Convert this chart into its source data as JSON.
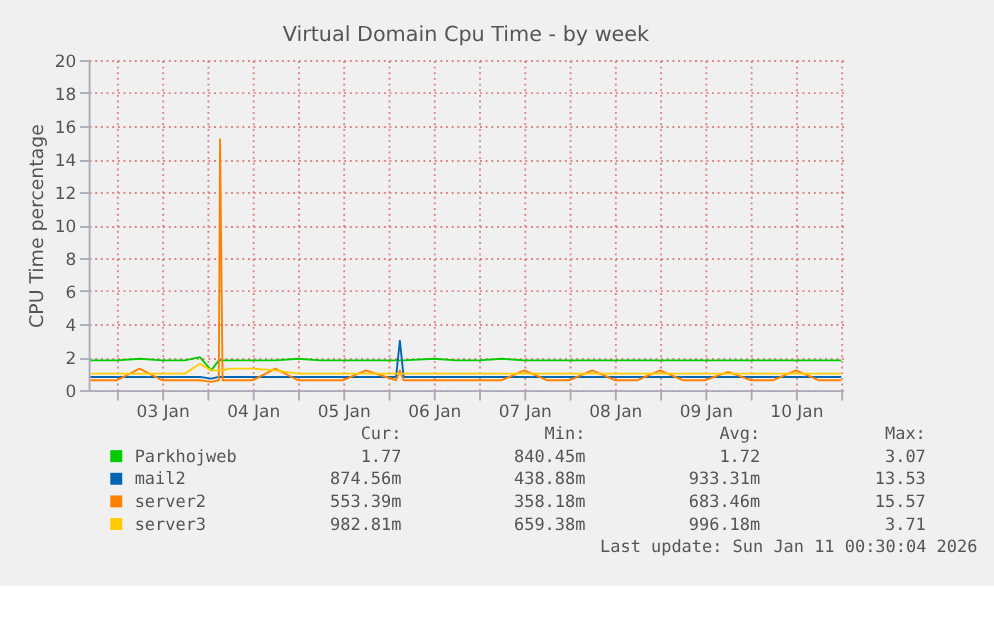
{
  "chart_data": {
    "type": "line",
    "title": "Virtual Domain Cpu Time - by week",
    "ylabel": "CPU Time percentage",
    "x": [
      "2026-01-02T17:00",
      "2026-01-03T00:00",
      "2026-01-03T06:00",
      "2026-01-03T12:00",
      "2026-01-03T18:00",
      "2026-01-03T22:00",
      "2026-01-04T01:00",
      "2026-01-04T03:00",
      "2026-01-04T03:20",
      "2026-01-04T04:00",
      "2026-01-04T06:00",
      "2026-01-04T12:00",
      "2026-01-04T18:00",
      "2026-01-05T00:00",
      "2026-01-05T06:00",
      "2026-01-05T12:00",
      "2026-01-05T18:00",
      "2026-01-06T02:00",
      "2026-01-06T03:00",
      "2026-01-06T04:00",
      "2026-01-06T12:00",
      "2026-01-06T18:00",
      "2026-01-07T00:00",
      "2026-01-07T06:00",
      "2026-01-07T12:00",
      "2026-01-07T18:00",
      "2026-01-08T00:00",
      "2026-01-08T06:00",
      "2026-01-08T12:00",
      "2026-01-08T18:00",
      "2026-01-09T00:00",
      "2026-01-09T06:00",
      "2026-01-09T12:00",
      "2026-01-09T18:00",
      "2026-01-10T00:00",
      "2026-01-10T06:00",
      "2026-01-10T12:00",
      "2026-01-10T18:00",
      "2026-01-11T00:00"
    ],
    "series": [
      {
        "name": "Parkhojweb",
        "color": "#00cc00",
        "values": [
          1.8,
          1.8,
          1.9,
          1.8,
          1.8,
          2.0,
          1.2,
          1.8,
          1.8,
          1.8,
          1.8,
          1.8,
          1.8,
          1.9,
          1.8,
          1.8,
          1.8,
          1.8,
          1.8,
          1.8,
          1.9,
          1.8,
          1.8,
          1.9,
          1.8,
          1.8,
          1.8,
          1.8,
          1.8,
          1.8,
          1.8,
          1.8,
          1.8,
          1.8,
          1.8,
          1.8,
          1.8,
          1.8,
          1.8
        ]
      },
      {
        "name": "mail2",
        "color": "#0066b3",
        "values": [
          0.8,
          0.8,
          0.8,
          0.8,
          0.8,
          0.8,
          0.7,
          0.8,
          0.8,
          0.8,
          0.8,
          0.8,
          0.8,
          0.8,
          0.8,
          0.8,
          0.8,
          0.8,
          3.0,
          0.8,
          0.8,
          0.8,
          0.8,
          0.8,
          0.8,
          0.8,
          0.8,
          0.8,
          0.8,
          0.8,
          0.8,
          0.8,
          0.8,
          0.8,
          0.8,
          0.8,
          0.8,
          0.8,
          0.8
        ]
      },
      {
        "name": "server2",
        "color": "#ff8000",
        "values": [
          0.6,
          0.6,
          1.3,
          0.6,
          0.6,
          0.6,
          0.5,
          0.6,
          15.2,
          0.6,
          0.6,
          0.6,
          1.3,
          0.6,
          0.6,
          0.6,
          1.2,
          0.6,
          1.2,
          0.6,
          0.6,
          0.6,
          0.6,
          0.6,
          1.2,
          0.6,
          0.6,
          1.2,
          0.6,
          0.6,
          1.2,
          0.6,
          0.6,
          1.1,
          0.6,
          0.6,
          1.2,
          0.6,
          0.6
        ]
      },
      {
        "name": "server3",
        "color": "#ffcc00",
        "values": [
          1.0,
          1.0,
          1.0,
          1.0,
          1.0,
          1.6,
          1.2,
          1.2,
          1.2,
          1.2,
          1.3,
          1.3,
          1.2,
          1.0,
          1.0,
          1.0,
          1.0,
          1.0,
          1.0,
          1.0,
          1.0,
          1.0,
          1.0,
          1.0,
          1.0,
          1.0,
          1.0,
          1.0,
          1.0,
          1.0,
          1.0,
          1.0,
          1.0,
          1.0,
          1.0,
          1.0,
          1.0,
          1.0,
          1.0
        ]
      }
    ],
    "xlim": [
      "2026-01-02T16:30",
      "2026-01-11T00:30"
    ],
    "xticks": [
      {
        "value": "2026-01-03T00:00",
        "label": null
      },
      {
        "value": "2026-01-03T12:00",
        "label": "03 Jan"
      },
      {
        "value": "2026-01-04T00:00",
        "label": null
      },
      {
        "value": "2026-01-04T12:00",
        "label": "04 Jan"
      },
      {
        "value": "2026-01-05T00:00",
        "label": null
      },
      {
        "value": "2026-01-05T12:00",
        "label": "05 Jan"
      },
      {
        "value": "2026-01-06T00:00",
        "label": null
      },
      {
        "value": "2026-01-06T12:00",
        "label": "06 Jan"
      },
      {
        "value": "2026-01-07T00:00",
        "label": null
      },
      {
        "value": "2026-01-07T12:00",
        "label": "07 Jan"
      },
      {
        "value": "2026-01-08T00:00",
        "label": null
      },
      {
        "value": "2026-01-08T12:00",
        "label": "08 Jan"
      },
      {
        "value": "2026-01-09T00:00",
        "label": null
      },
      {
        "value": "2026-01-09T12:00",
        "label": "09 Jan"
      },
      {
        "value": "2026-01-10T00:00",
        "label": null
      },
      {
        "value": "2026-01-10T12:00",
        "label": "10 Jan"
      },
      {
        "value": "2026-01-11T00:00",
        "label": null
      }
    ],
    "ylim": [
      0,
      20
    ],
    "yticks": [
      0,
      2,
      4,
      6,
      8,
      10,
      12,
      14,
      16,
      18,
      20
    ],
    "grid": true,
    "legend": "bottom",
    "marker": "none",
    "line_style": "solid",
    "annotations": [
      "Cur:",
      "Min:",
      "Avg:",
      "Max:",
      "1.77",
      "840.45m",
      "1.72",
      "3.07",
      "874.56m",
      "438.88m",
      "933.31m",
      "13.53",
      "553.39m",
      "358.18m",
      "683.46m",
      "15.57",
      "982.81m",
      "659.38m",
      "996.18m",
      "3.71",
      "Last update: Sun Jan 11 00:30:04 2026"
    ]
  }
}
